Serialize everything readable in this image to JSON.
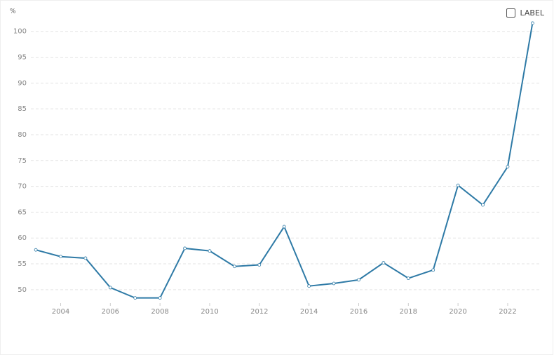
{
  "chart_data": {
    "type": "line",
    "y_unit": "%",
    "x": [
      2003,
      2004,
      2005,
      2006,
      2007,
      2008,
      2009,
      2010,
      2011,
      2012,
      2013,
      2014,
      2015,
      2016,
      2017,
      2018,
      2019,
      2020,
      2021,
      2022,
      2023
    ],
    "series": [
      {
        "name": "LABEL",
        "color": "#2e7aa6",
        "values": [
          57.7,
          56.4,
          56.1,
          50.4,
          48.4,
          48.4,
          58.0,
          57.5,
          54.5,
          54.8,
          62.2,
          50.7,
          51.2,
          51.9,
          55.2,
          52.2,
          53.8,
          70.2,
          66.4,
          73.8,
          101.6
        ]
      }
    ],
    "xlim": [
      2002.8,
      2023.3
    ],
    "xticks": [
      2004,
      2006,
      2008,
      2010,
      2012,
      2014,
      2016,
      2018,
      2020,
      2022
    ],
    "ylim": [
      47.4,
      102
    ],
    "yticks": [
      50,
      55,
      60,
      65,
      70,
      75,
      80,
      85,
      90,
      95,
      100
    ],
    "grid": true,
    "legend": "top-right"
  }
}
